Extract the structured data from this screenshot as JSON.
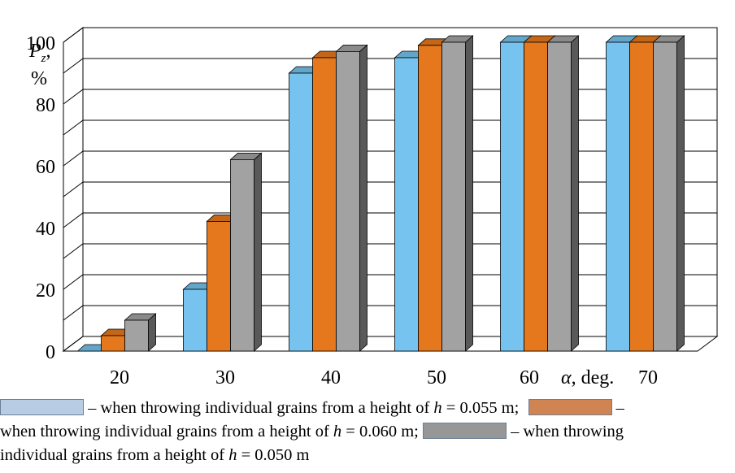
{
  "chart_data": {
    "type": "bar",
    "style": "3d-clustered-column",
    "categories": [
      "20",
      "30",
      "40",
      "50",
      "60",
      "70"
    ],
    "series": [
      {
        "name": "h = 0.055 m",
        "color": "#75c3ee",
        "values": [
          0,
          20,
          90,
          95,
          100,
          100
        ]
      },
      {
        "name": "h = 0.060 m",
        "color": "#e5781c",
        "values": [
          5,
          42,
          95,
          99,
          100,
          100
        ]
      },
      {
        "name": "h = 0.050 m",
        "color": "#a2a2a2",
        "values": [
          10,
          62,
          97,
          100,
          100,
          100
        ]
      }
    ],
    "ylim": [
      0,
      100
    ],
    "yticks": [
      "0",
      "20",
      "40",
      "60",
      "80",
      "100"
    ],
    "gridlines": [
      0,
      10,
      20,
      30,
      40,
      50,
      60,
      70,
      80,
      90,
      100
    ],
    "ylabel": {
      "symbol": "P",
      "sub": "z",
      "after": ",",
      "unit": "%"
    },
    "xlabel": {
      "symbol": "α",
      "after": ", deg."
    },
    "grid": true
  },
  "legend": {
    "pre": "– when throwing individual grains from a height of",
    "h": "h",
    "eq1": " = 0.055 m;",
    "dash": " –",
    "line2_text": "when throwing individual grains from a height of ",
    "eq2": " = 0.060 m;",
    "line2_after": " – when throwing",
    "line3_text": "individual grains from a height of ",
    "eq3": " = 0.050 m",
    "swatch1": "#b8cce4",
    "swatch2": "#d08452",
    "swatch3": "#979797"
  }
}
